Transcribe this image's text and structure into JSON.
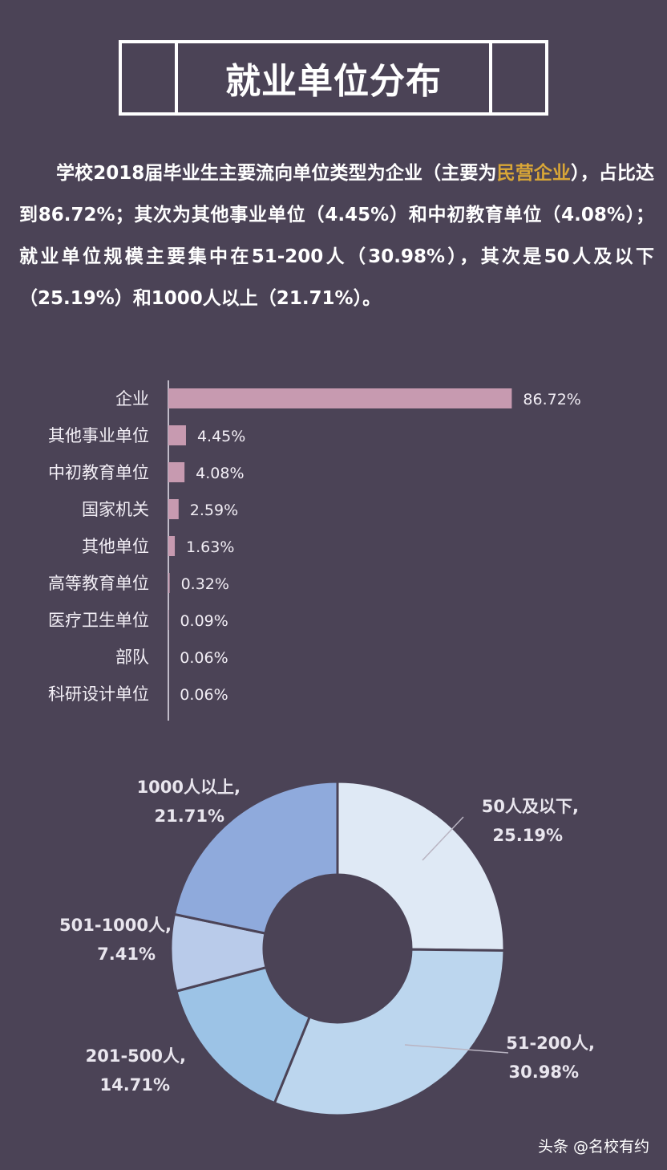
{
  "header": {
    "title": "就业单位分布"
  },
  "intro": {
    "before": "学校2018届毕业生主要流向单位类型为企业（主要为",
    "highlight": "民营企业",
    "after": "），占比达到86.72%；其次为其他事业单位（4.45%）和中初教育单位（4.08%）；就业单位规模主要集中在51-200人（30.98%），其次是50人及以下（25.19%）和1000人以上（21.71%）。"
  },
  "chart_data": [
    {
      "type": "bar",
      "orientation": "horizontal",
      "categories": [
        "企业",
        "其他事业单位",
        "中初教育单位",
        "国家机关",
        "其他单位",
        "高等教育单位",
        "医疗卫生单位",
        "部队",
        "科研设计单位"
      ],
      "values": [
        86.72,
        4.45,
        4.08,
        2.59,
        1.63,
        0.32,
        0.09,
        0.06,
        0.06
      ],
      "value_labels": [
        "86.72%",
        "4.45%",
        "4.08%",
        "2.59%",
        "1.63%",
        "0.32%",
        "0.09%",
        "0.06%",
        "0.06%"
      ],
      "xlim": [
        0,
        100
      ],
      "color": "#c79ab0"
    },
    {
      "type": "pie",
      "donut": true,
      "categories": [
        "50人及以下",
        "51-200人",
        "201-500人",
        "501-1000人",
        "1000人以上"
      ],
      "values": [
        25.19,
        30.98,
        14.71,
        7.41,
        21.71
      ],
      "value_labels": [
        "25.19%",
        "30.98%",
        "14.71%",
        "7.41%",
        "21.71%"
      ],
      "colors": [
        "#dfe9f5",
        "#bcd6ee",
        "#9cc3e6",
        "#b9cbea",
        "#8faadc"
      ]
    }
  ],
  "footer": {
    "text": "头条 @名校有约"
  }
}
